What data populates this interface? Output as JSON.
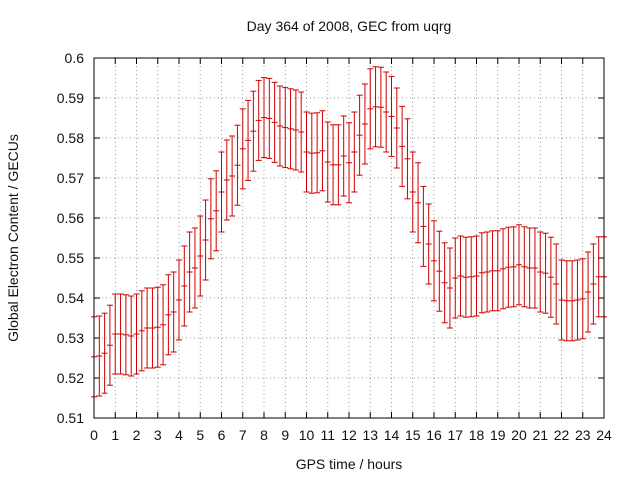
{
  "chart_data": {
    "type": "scatter",
    "title": "Day 364 of 2008, GEC from uqrg",
    "xlabel": "GPS time / hours",
    "ylabel": "Global Electron Content / GECUs",
    "xlim": [
      0,
      24
    ],
    "ylim": [
      0.51,
      0.6
    ],
    "x_ticks": [
      0,
      1,
      2,
      3,
      4,
      5,
      6,
      7,
      8,
      9,
      10,
      11,
      12,
      13,
      14,
      15,
      16,
      17,
      18,
      19,
      20,
      21,
      22,
      23,
      24
    ],
    "y_ticks": [
      0.51,
      0.52,
      0.53,
      0.54,
      0.55,
      0.56,
      0.57,
      0.58,
      0.59,
      0.6
    ],
    "grid": true,
    "grid_style": "dotted",
    "error_bar_half_width": 0.01,
    "color": "#cc0000",
    "series": [
      {
        "x": [
          0,
          0.25,
          0.5,
          0.75,
          1,
          1.25,
          1.5,
          1.75,
          2,
          2.25,
          2.5,
          2.75,
          3,
          3.25,
          3.5,
          3.75,
          4,
          4.25,
          4.5,
          4.75,
          5,
          5.25,
          5.5,
          5.75,
          6,
          6.25,
          6.5,
          6.75,
          7,
          7.25,
          7.5,
          7.75,
          8,
          8.25,
          8.5,
          8.75,
          9,
          9.25,
          9.5,
          9.75,
          10,
          10.25,
          10.5,
          10.75,
          11,
          11.25,
          11.5,
          11.75,
          12,
          12.25,
          12.5,
          12.75,
          13,
          13.25,
          13.5,
          13.75,
          14,
          14.25,
          14.5,
          14.75,
          15,
          15.25,
          15.5,
          15.75,
          16,
          16.25,
          16.5,
          16.75,
          17,
          17.25,
          17.5,
          17.75,
          18,
          18.25,
          18.5,
          18.75,
          19,
          19.25,
          19.5,
          19.75,
          20,
          20.25,
          20.5,
          20.75,
          21,
          21.25,
          21.5,
          21.75,
          22,
          22.25,
          22.5,
          22.75,
          23,
          23.25,
          23.5,
          23.75,
          24
        ],
        "y": [
          0.5253,
          0.5255,
          0.5262,
          0.5282,
          0.531,
          0.531,
          0.5308,
          0.5305,
          0.531,
          0.5318,
          0.5325,
          0.5325,
          0.5327,
          0.5333,
          0.5358,
          0.5365,
          0.5395,
          0.543,
          0.5465,
          0.5475,
          0.5505,
          0.5545,
          0.5598,
          0.5618,
          0.5665,
          0.5695,
          0.5705,
          0.5732,
          0.5773,
          0.5794,
          0.5817,
          0.5844,
          0.5851,
          0.5849,
          0.5839,
          0.583,
          0.5826,
          0.5823,
          0.582,
          0.5815,
          0.5765,
          0.5762,
          0.5763,
          0.5768,
          0.574,
          0.5733,
          0.5733,
          0.5755,
          0.5738,
          0.5765,
          0.5807,
          0.5835,
          0.5873,
          0.5878,
          0.5877,
          0.5865,
          0.5854,
          0.5825,
          0.5779,
          0.5748,
          0.5665,
          0.5638,
          0.5579,
          0.5535,
          0.5493,
          0.5467,
          0.5438,
          0.5425,
          0.545,
          0.5455,
          0.5452,
          0.5453,
          0.5455,
          0.5463,
          0.5465,
          0.5468,
          0.5468,
          0.5473,
          0.5477,
          0.5478,
          0.5483,
          0.5478,
          0.5475,
          0.5475,
          0.5465,
          0.5462,
          0.5452,
          0.5435,
          0.5395,
          0.5393,
          0.5393,
          0.5395,
          0.5398,
          0.5415,
          0.5435,
          0.5453,
          0.5453
        ]
      }
    ]
  }
}
